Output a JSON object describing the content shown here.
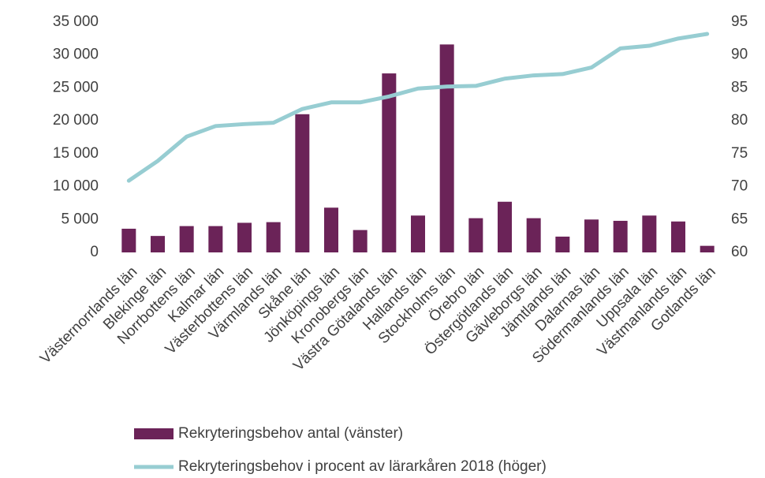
{
  "chart_data": {
    "type": "bar_line",
    "categories": [
      "Västernorrlands län",
      "Blekinge län",
      "Norrbottens län",
      "Kalmar län",
      "Västerbottens län",
      "Värmlands län",
      "Skåne län",
      "Jönköpings län",
      "Kronobergs län",
      "Västra Götalands län",
      "Hallands län",
      "Stockholms län",
      "Örebro län",
      "Östergötlands län",
      "Gävleborgs län",
      "Jämtlands län",
      "Dalarnas län",
      "Södermanlands län",
      "Uppsala län",
      "Västmanlands län",
      "Gotlands län"
    ],
    "series": [
      {
        "name": "Rekryteringsbehov antal (vänster)",
        "type": "bar",
        "color": "#6b2358",
        "values": [
          3600,
          2500,
          4000,
          4000,
          4500,
          4600,
          21000,
          6800,
          3400,
          27200,
          5600,
          31600,
          5200,
          7700,
          5200,
          2400,
          5000,
          4800,
          5600,
          4700,
          1000
        ]
      },
      {
        "name": "Rekryteringsbehov i procent av lärarkåren 2018 (höger)",
        "type": "line",
        "axis": "y2",
        "color": "#97cdd2",
        "values": [
          70.9,
          73.9,
          77.6,
          79.2,
          79.5,
          79.7,
          81.8,
          82.8,
          82.8,
          83.7,
          84.9,
          85.2,
          85.3,
          86.4,
          86.9,
          87.1,
          88.1,
          91.0,
          91.4,
          92.5,
          93.2
        ]
      }
    ],
    "ylim": [
      0,
      35000
    ],
    "yticks": [
      0,
      {
        "value": 5000,
        "label": "5 000"
      },
      {
        "value": 10000,
        "label": "10 000"
      },
      {
        "value": 15000,
        "label": "15 000"
      },
      {
        "value": 20000,
        "label": "20 000"
      },
      {
        "value": 25000,
        "label": "25 000"
      },
      {
        "value": 30000,
        "label": "30 000"
      },
      {
        "value": 35000,
        "label": "35 000"
      }
    ],
    "y2lim": [
      60,
      95
    ],
    "y2ticks": [
      60,
      65,
      70,
      75,
      80,
      85,
      90,
      95
    ],
    "grid": false
  }
}
